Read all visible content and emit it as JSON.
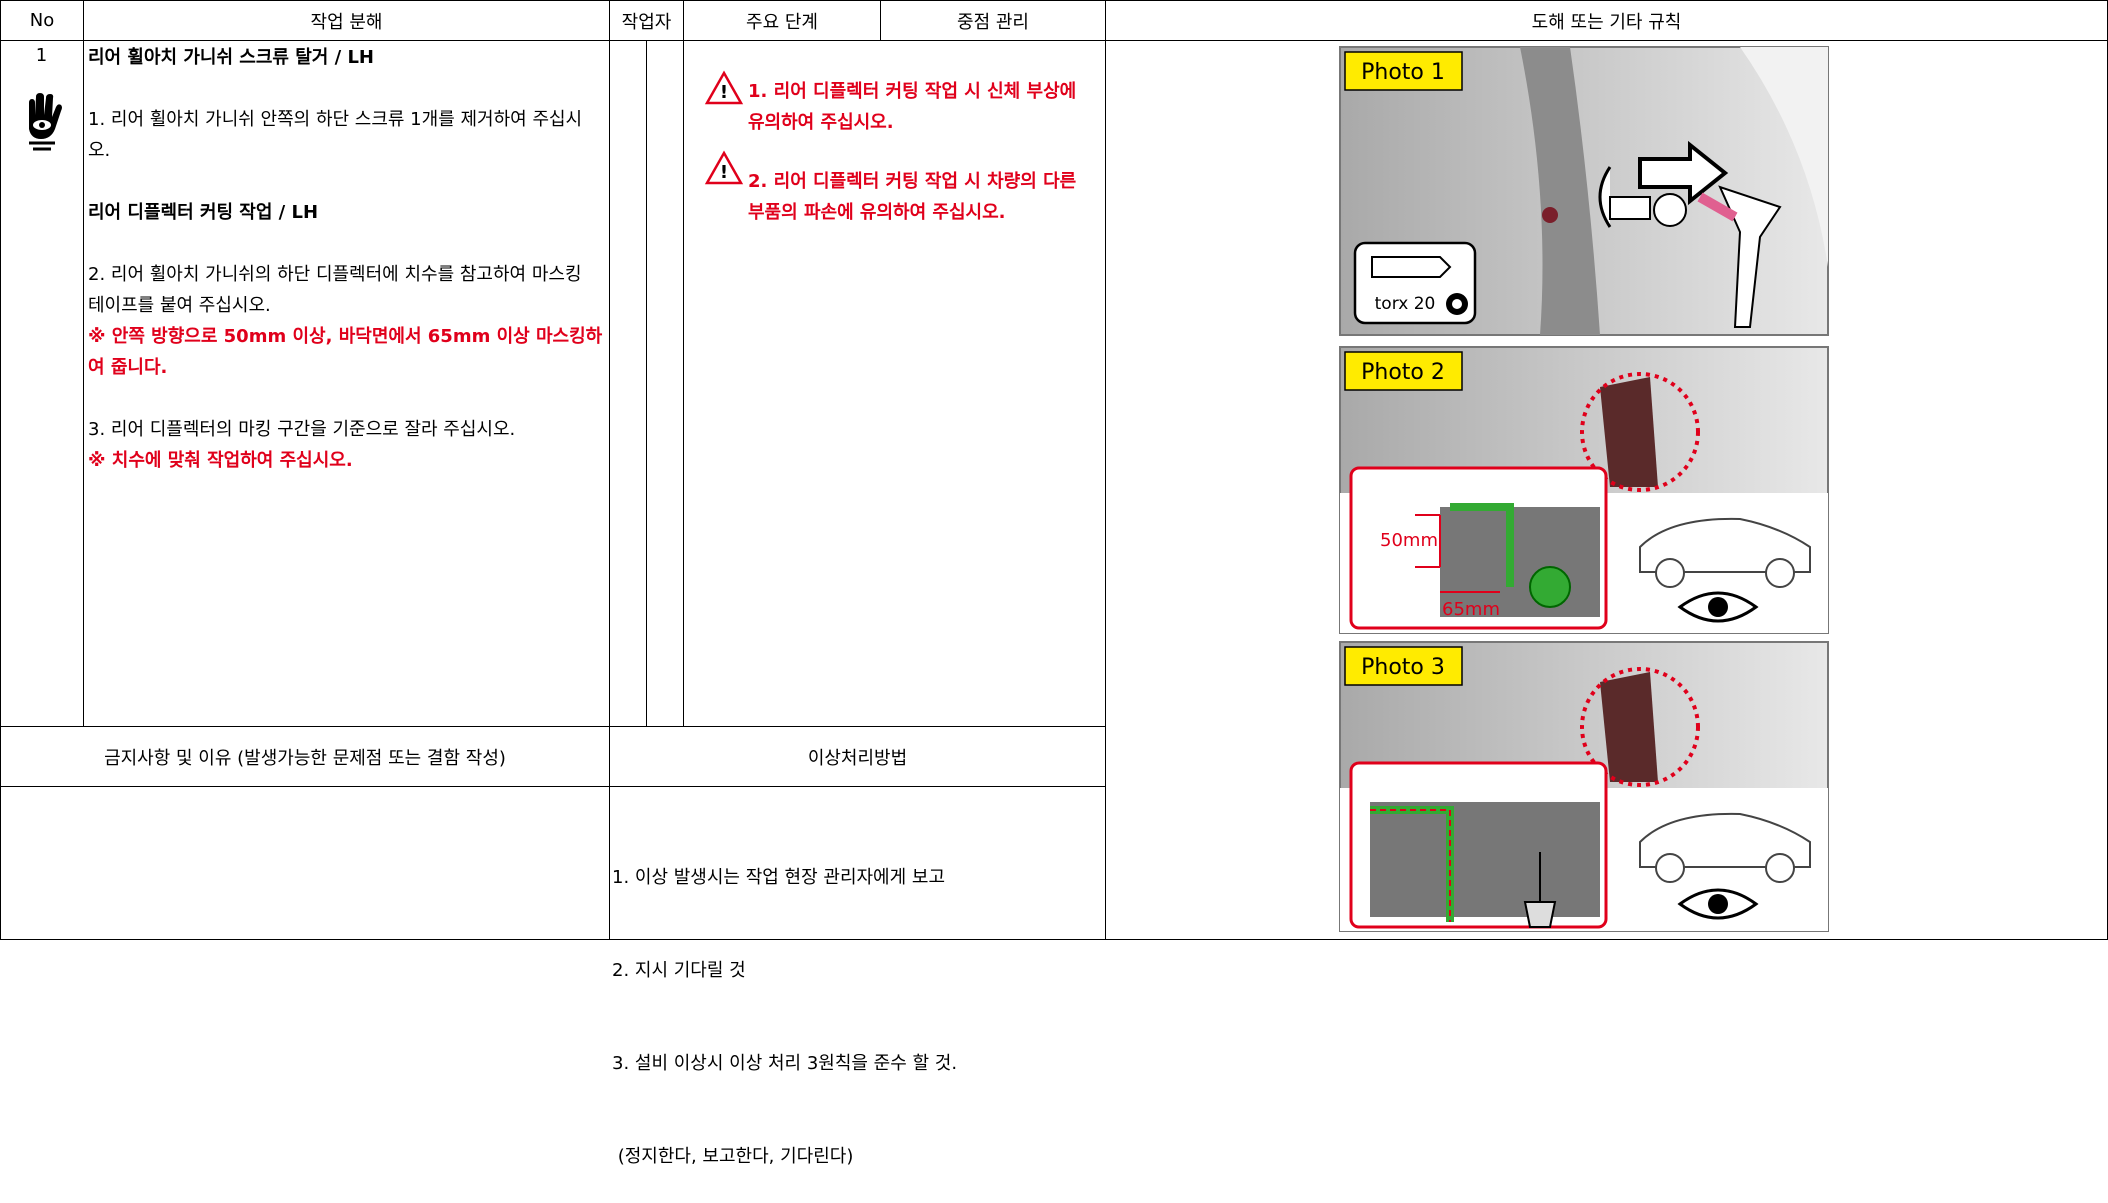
{
  "header": {
    "no": "No",
    "task": "작업 분해",
    "worker": "작업자",
    "key_step": "주요 단계",
    "focus": "중점 관리",
    "illustration": "도해 또는 기타 규칙"
  },
  "step": {
    "no": "1",
    "title1": "리어 휠아치 가니쉬 스크류 탈거 / LH",
    "line1": "1. 리어 휠아치 가니쉬 안쪽의 하단 스크류 1개를 제거하여 주십시오.",
    "title2": "리어 디플렉터 커팅 작업 / LH",
    "line2": "2. 리어 휠아치 가니쉬의 하단 디플렉터에 치수를 참고하여 마스킹 테이프를 붙여 주십시오.",
    "note2": "※ 안쪽 방향으로 50mm 이상, 바닥면에서 65mm 이상 마스킹하여 줍니다.",
    "line3": "3. 리어 디플렉터의 마킹 구간을 기준으로 잘라 주십시오.",
    "note3": "※ 치수에 맞춰 작업하여 주십시오."
  },
  "warnings": [
    "1. 리어 디플렉터 커팅 작업 시 신체 부상에 유의하여 주십시오.",
    "2. 리어 디플렉터 커팅 작업 시 차량의 다른 부품의 파손에 유의하여 주십시오."
  ],
  "prohibited": {
    "header": "금지사항 및 이유 (발생가능한 문제점 또는 결함 작성)"
  },
  "abnormal": {
    "header": "이상처리방법",
    "lines": [
      "1. 이상 발생시는 작업 현장 관리자에게 보고",
      "2. 지시 기다릴 것",
      "3. 설비 이상시 이상 처리 3원칙을 준수 할 것.",
      " (정지한다, 보고한다, 기다린다)"
    ]
  },
  "photos": [
    {
      "label": "Photo 1",
      "tool": "torx 20"
    },
    {
      "label": "Photo 2",
      "dims": [
        "50mm",
        "65mm"
      ]
    },
    {
      "label": "Photo 3"
    }
  ]
}
